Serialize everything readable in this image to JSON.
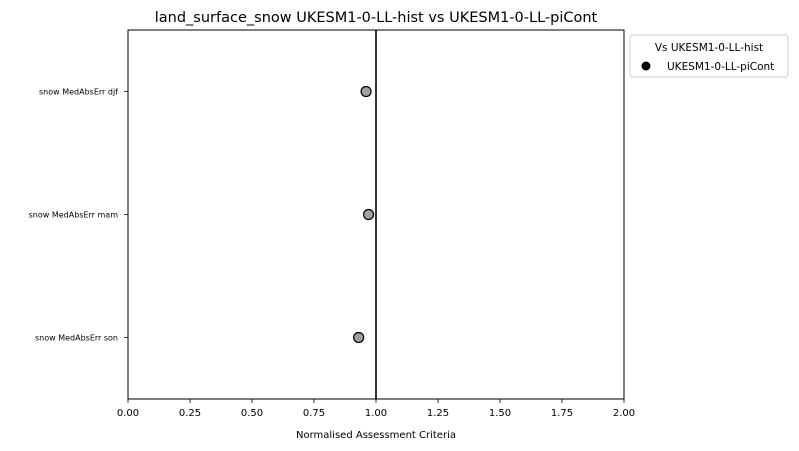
{
  "chart_data": {
    "type": "scatter",
    "title": "land_surface_snow UKESM1-0-LL-hist vs UKESM1-0-LL-piCont",
    "xlabel": "Normalised Assessment Criteria",
    "ylabel": "",
    "xlim": [
      0.0,
      2.0
    ],
    "x_ticks": [
      "0.00",
      "0.25",
      "0.50",
      "0.75",
      "1.00",
      "1.25",
      "1.50",
      "1.75",
      "2.00"
    ],
    "categories": [
      "snow MedAbsErr djf",
      "snow MedAbsErr mam",
      "snow MedAbsErr son"
    ],
    "reference_line_x": 1.0,
    "series": [
      {
        "name": "UKESM1-0-LL-piCont",
        "values": [
          0.96,
          0.97,
          0.93
        ],
        "color": "#a0a0a0",
        "edge_color": "#000000"
      }
    ],
    "legend": {
      "title": "Vs UKESM1-0-LL-hist",
      "placement": "outside-upper-right",
      "marker_color": "#000000"
    },
    "grid": false
  }
}
